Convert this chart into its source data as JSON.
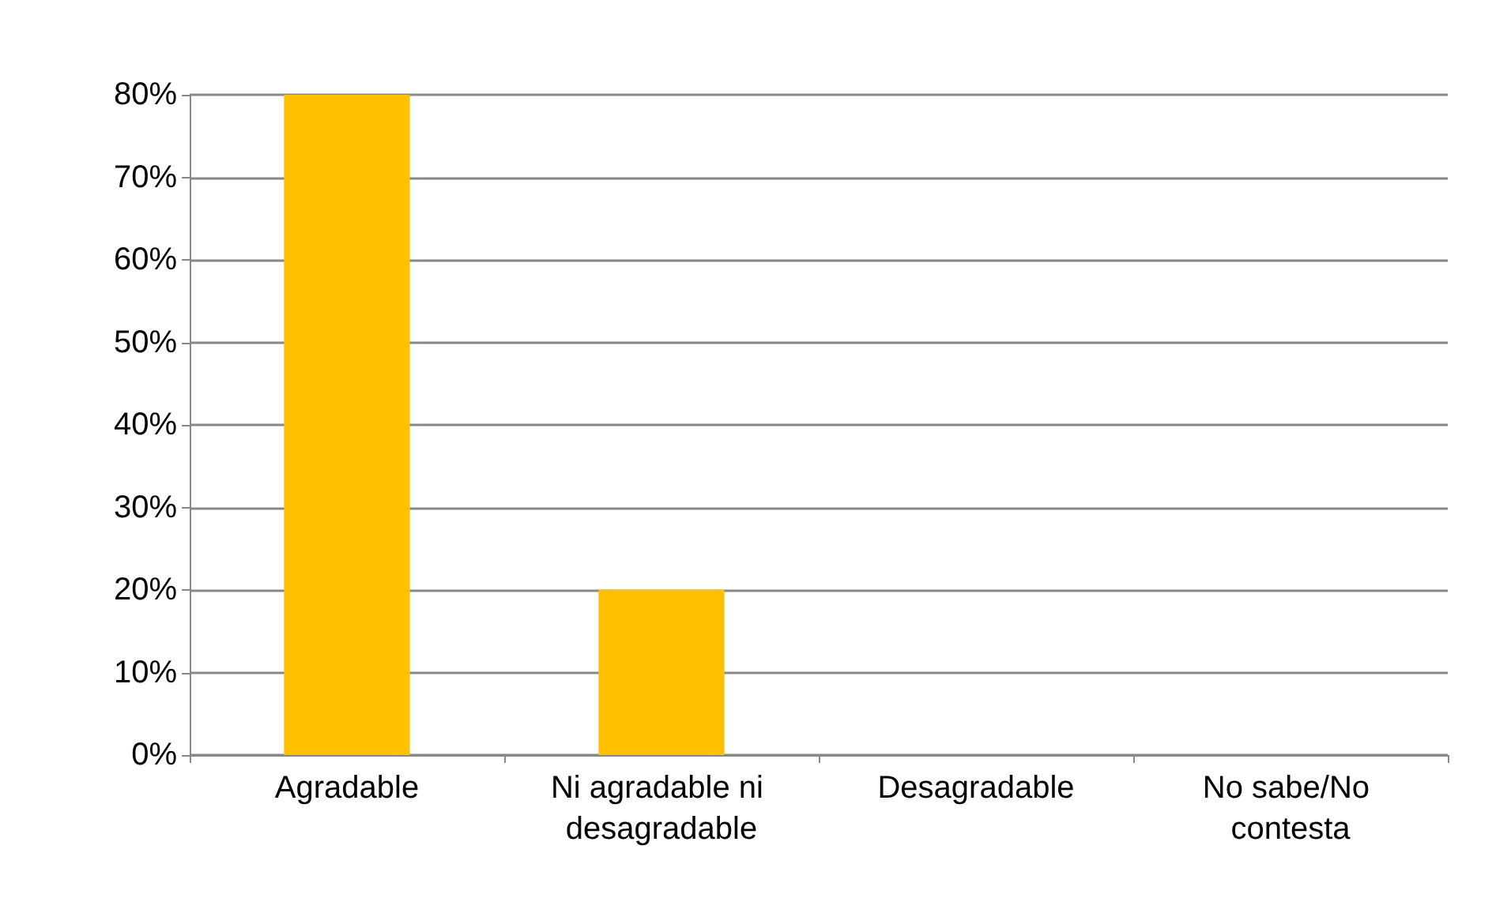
{
  "chart_data": {
    "type": "bar",
    "categories": [
      "Agradable",
      "Ni agradable ni desagradable",
      "Desagradable",
      "No sabe/No contesta"
    ],
    "values": [
      80,
      20,
      0,
      0
    ],
    "color": "#ffc000",
    "ylim": [
      0,
      80
    ],
    "yticks": [
      {
        "value": 0,
        "label": "0%"
      },
      {
        "value": 10,
        "label": "10%"
      },
      {
        "value": 20,
        "label": "20%"
      },
      {
        "value": 30,
        "label": "30%"
      },
      {
        "value": 40,
        "label": "40%"
      },
      {
        "value": 50,
        "label": "50%"
      },
      {
        "value": 60,
        "label": "60%"
      },
      {
        "value": 70,
        "label": "70%"
      },
      {
        "value": 80,
        "label": "80%"
      }
    ],
    "grid": true
  }
}
